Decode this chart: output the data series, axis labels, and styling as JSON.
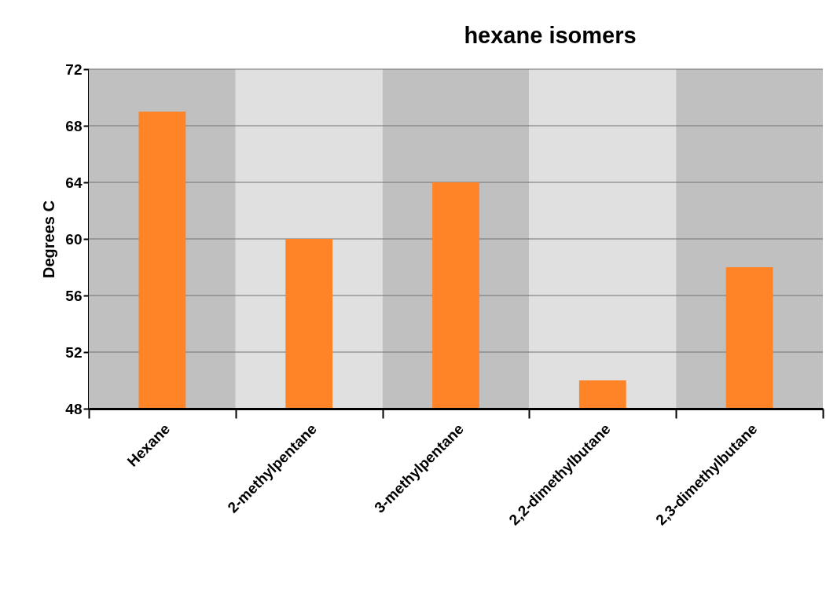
{
  "chart_data": {
    "type": "bar",
    "title": "hexane isomers",
    "ylabel": "Degrees C",
    "categories": [
      "Hexane",
      "2-methylpentane",
      "3-methylpentane",
      "2,2-dimethylbutane",
      "2,3-dimethylbutane"
    ],
    "values": [
      69,
      60,
      64,
      50,
      58
    ],
    "color": "#ff8427",
    "ylim": [
      48,
      72
    ],
    "yticks": [
      48,
      52,
      56,
      60,
      64,
      68,
      72
    ],
    "grid": "y",
    "bands": [
      {
        "axis": "x",
        "from": "Hexane",
        "to": "Hexane",
        "color": "#c0c0c0"
      },
      {
        "axis": "x",
        "from": "2-methylpentane",
        "to": "2-methylpentane",
        "color": "#e0e0e0"
      },
      {
        "axis": "x",
        "from": "3-methylpentane",
        "to": "3-methylpentane",
        "color": "#c0c0c0"
      },
      {
        "axis": "x",
        "from": "2,2-dimethylbutane",
        "to": "2,2-dimethylbutane",
        "color": "#e0e0e0"
      },
      {
        "axis": "x",
        "from": "2,3-dimethylbutane",
        "to": "2,3-dimethylbutane",
        "color": "#c0c0c0"
      }
    ]
  }
}
